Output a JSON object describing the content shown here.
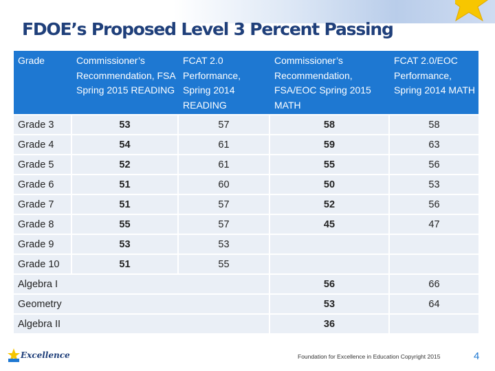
{
  "title": "FDOE’s Proposed Level 3 Percent Passing",
  "headers": [
    "Grade",
    "Commissioner’s Recommendation, FSA Spring 2015 READING",
    "FCAT 2.0 Performance, Spring 2014 READING",
    "Commissioner’s Recommendation, FSA/EOC Spring 2015 MATH",
    "FCAT 2.0/EOC Performance, Spring 2014 MATH"
  ],
  "rows": [
    {
      "grade": "Grade 3",
      "fsa_reading": "53",
      "fcat_reading": "57",
      "fsa_math": "58",
      "fcat_math": "58"
    },
    {
      "grade": "Grade 4",
      "fsa_reading": "54",
      "fcat_reading": "61",
      "fsa_math": "59",
      "fcat_math": "63"
    },
    {
      "grade": "Grade 5",
      "fsa_reading": "52",
      "fcat_reading": "61",
      "fsa_math": "55",
      "fcat_math": "56"
    },
    {
      "grade": "Grade 6",
      "fsa_reading": "51",
      "fcat_reading": "60",
      "fsa_math": "50",
      "fcat_math": "53"
    },
    {
      "grade": "Grade 7",
      "fsa_reading": "51",
      "fcat_reading": "57",
      "fsa_math": "52",
      "fcat_math": "56"
    },
    {
      "grade": "Grade 8",
      "fsa_reading": "55",
      "fcat_reading": "57",
      "fsa_math": "45",
      "fcat_math": "47"
    },
    {
      "grade": "Grade 9",
      "fsa_reading": "53",
      "fcat_reading": "53"
    },
    {
      "grade": "Grade 10",
      "fsa_reading": "51",
      "fcat_reading": "55"
    },
    {
      "grade": "Algebra I",
      "fsa_math": "56",
      "fcat_math": "66"
    },
    {
      "grade": "Geometry",
      "fsa_math": "53",
      "fcat_math": "64"
    },
    {
      "grade": "Algebra II",
      "fsa_math": "36"
    }
  ],
  "footer": {
    "logo_text": "Excellence",
    "copyright": "Foundation for Excellence in Education Copyright 2015",
    "page": "4"
  },
  "colors": {
    "header_bg": "#1e78d2",
    "row_bg": "#eaeff6",
    "title": "#1f3f7a"
  }
}
